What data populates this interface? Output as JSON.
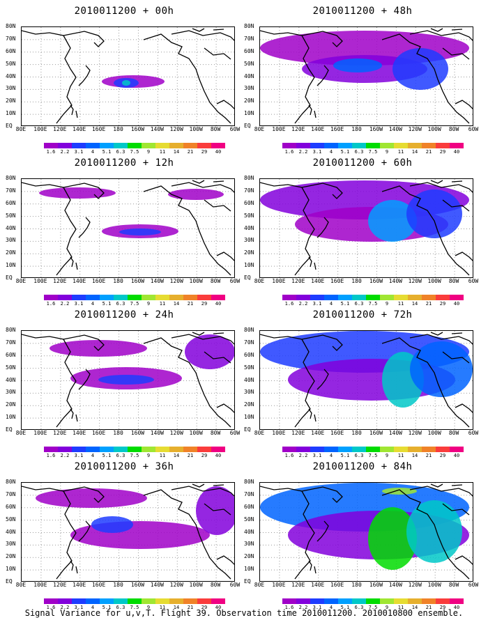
{
  "panels": [
    {
      "title": "2010011200 + 00h",
      "level": 0
    },
    {
      "title": "2010011200 + 12h",
      "level": 1
    },
    {
      "title": "2010011200 + 24h",
      "level": 2
    },
    {
      "title": "2010011200 + 36h",
      "level": 3
    },
    {
      "title": "2010011200 + 48h",
      "level": 4
    },
    {
      "title": "2010011200 + 60h",
      "level": 5
    },
    {
      "title": "2010011200 + 72h",
      "level": 6
    },
    {
      "title": "2010011200 + 84h",
      "level": 7
    }
  ],
  "lat_labels": [
    "80N",
    "70N",
    "60N",
    "50N",
    "40N",
    "30N",
    "20N",
    "10N",
    "EQ"
  ],
  "lon_labels": [
    "80E",
    "100E",
    "120E",
    "140E",
    "160E",
    "180",
    "160W",
    "140W",
    "120W",
    "100W",
    "80W",
    "60W"
  ],
  "colorbar": {
    "labels": [
      "1.6",
      "2.2",
      "3.1",
      "4",
      "5.1",
      "6.3",
      "7.5",
      "9",
      "11",
      "14",
      "21",
      "29",
      "40"
    ],
    "colors": [
      "#a000c8",
      "#8200dc",
      "#1e3cff",
      "#0064ff",
      "#00a0ff",
      "#00c8c8",
      "#00dc00",
      "#a0e632",
      "#e6dc32",
      "#e6af2d",
      "#f08228",
      "#fa3c3c",
      "#f00082"
    ]
  },
  "caption": "Signal Variance for u,v,T. Flight 39. Observation time 2010011200. 2010010800 ensemble."
}
